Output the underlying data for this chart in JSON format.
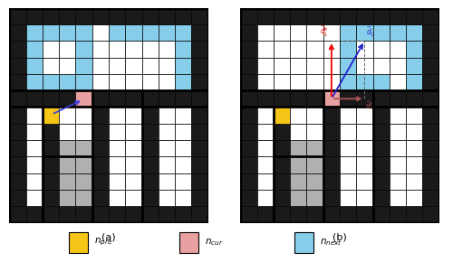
{
  "fig_width": 5.0,
  "fig_height": 2.9,
  "dpi": 100,
  "bg_color": "#ffffff",
  "grid_color": "#000000",
  "wall_color": "#1a1a1a",
  "free_color": "#ffffff",
  "obstacle_color": "#b0b0b0",
  "npre_color": "#f5c518",
  "ncur_color": "#e8a0a0",
  "nnext_color": "#87ceeb",
  "arrow_color_a": "#4040dd",
  "arrow_red": "#ee0000",
  "arrow_blue": "#2222cc",
  "arrow_brown": "#aa5555",
  "subtitle_a": "(a)",
  "subtitle_b": "(b)",
  "legend_npre": "$n_{pre}$",
  "legend_ncur": "$n_{cur}$",
  "legend_nnext": "$n_{next}$",
  "panel_a_ncur": [
    7,
    4
  ],
  "panel_a_npre": [
    6,
    2
  ],
  "panel_b_ncur": [
    7,
    5
  ],
  "panel_b_npre": [
    6,
    2
  ]
}
